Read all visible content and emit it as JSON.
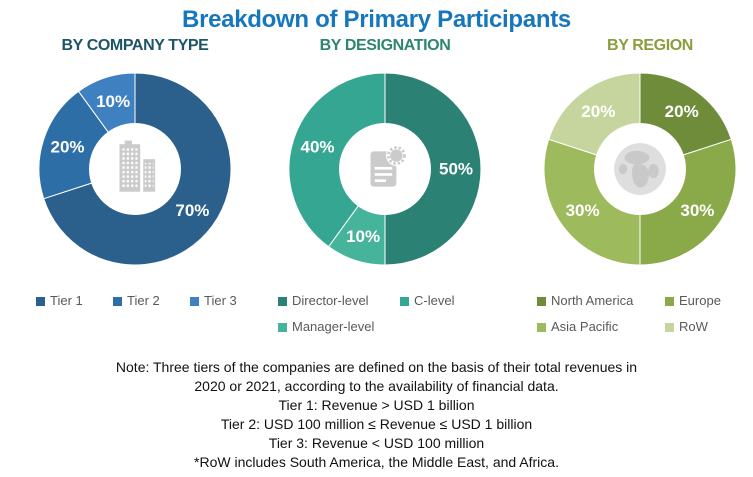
{
  "title": "Breakdown of Primary Participants",
  "title_color": "#1777BD",
  "chart_data": [
    {
      "type": "pie",
      "subtype": "donut",
      "title": "BY COMPANY TYPE",
      "title_color": "#1D5468",
      "center_icon": "building-icon",
      "units": "%",
      "slices": [
        {
          "label": "Tier 1",
          "value": 70,
          "color": "#2B5F8C"
        },
        {
          "label": "Tier 2",
          "value": 20,
          "color": "#2E6EA6"
        },
        {
          "label": "Tier 3",
          "value": 10,
          "color": "#3F80C1"
        }
      ],
      "legend_order": [
        "Tier 1",
        "Tier 2",
        "Tier 3"
      ],
      "legend_position": "bottom"
    },
    {
      "type": "pie",
      "subtype": "donut",
      "title": "BY DESIGNATION",
      "title_color": "#2E8570",
      "center_icon": "document-icon",
      "units": "%",
      "slices": [
        {
          "label": "Director-level",
          "value": 50,
          "color": "#2B8173"
        },
        {
          "label": "Manager-level",
          "value": 10,
          "color": "#46B49B"
        },
        {
          "label": "C-level",
          "value": 40,
          "color": "#35A692"
        }
      ],
      "legend_order": [
        "Director-level",
        "C-level",
        "Manager-level"
      ],
      "legend_position": "bottom"
    },
    {
      "type": "pie",
      "subtype": "donut",
      "title": "BY REGION",
      "title_color": "#8A9E3C",
      "center_icon": "globe-icon",
      "units": "%",
      "slices": [
        {
          "label": "North America",
          "value": 20,
          "color": "#6E8C3A"
        },
        {
          "label": "Europe",
          "value": 30,
          "color": "#8AAA49"
        },
        {
          "label": "Asia Pacific",
          "value": 30,
          "color": "#9DBA5C"
        },
        {
          "label": "RoW",
          "value": 20,
          "color": "#C5D59D"
        }
      ],
      "legend_order": [
        "North America",
        "Europe",
        "Asia Pacific",
        "RoW"
      ],
      "legend_position": "bottom"
    }
  ],
  "note": {
    "lines": [
      "Note: Three tiers of the companies are defined on the basis of their total revenues in",
      "2020 or 2021, according to the availability of financial data.",
      "Tier 1: Revenue > USD 1 billion",
      "Tier 2: USD 100 million ≤ Revenue ≤ USD 1 billion",
      "Tier 3: Revenue < USD 100 million",
      "*RoW includes South America, the Middle East, and Africa."
    ]
  }
}
